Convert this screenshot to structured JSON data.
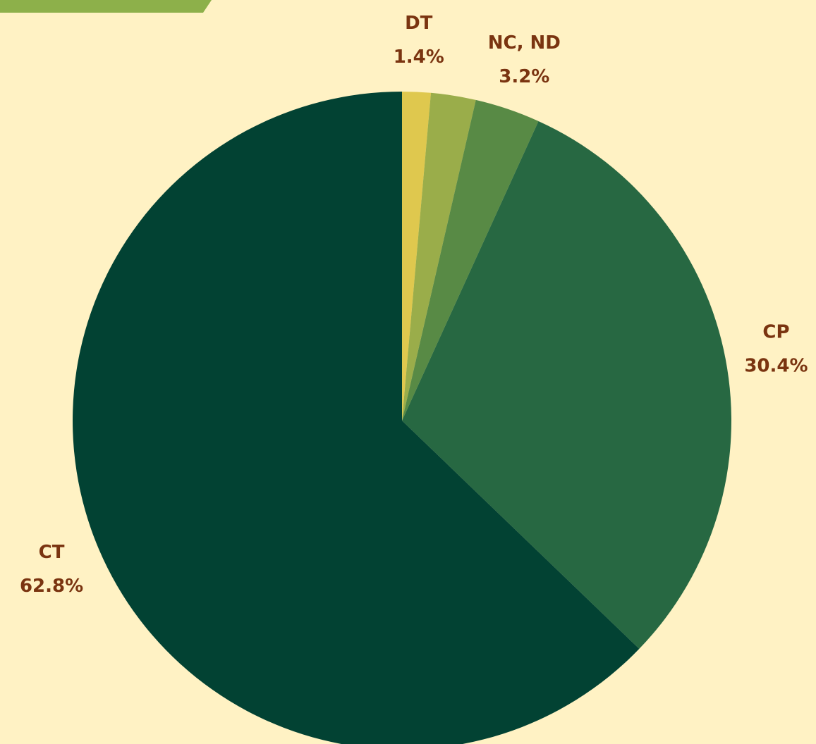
{
  "chart_data": {
    "type": "pie",
    "categories": [
      "DT",
      null,
      "NC, ND",
      "CP",
      "CT"
    ],
    "values": [
      1.4,
      2.2,
      3.2,
      30.4,
      62.8
    ],
    "value_labels": [
      "1.4%",
      null,
      "3.2%",
      "30.4%",
      "62.8%"
    ],
    "colors": [
      "#dfc84e",
      "#9aad4a",
      "#588a45",
      "#276842",
      "#024233"
    ]
  }
}
